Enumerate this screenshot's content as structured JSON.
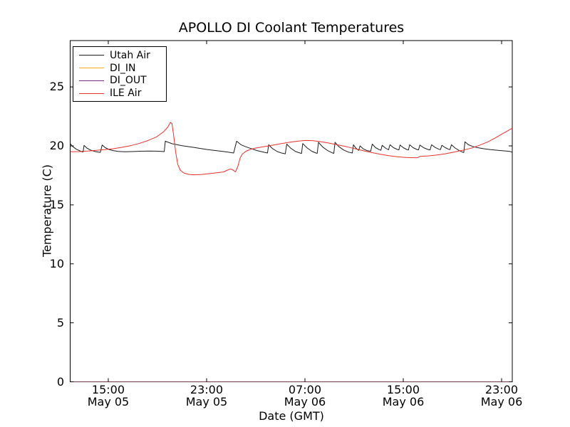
{
  "chart_data": {
    "type": "line",
    "title": "APOLLO DI Coolant Temperatures",
    "xlabel": "Date (GMT)",
    "ylabel": "Temperature (C)",
    "x_unit": "hours since May 05 00:00 GMT",
    "x_domain": [
      11.9,
      47.87
    ],
    "y_domain": [
      0,
      28.93
    ],
    "grid": false,
    "legend_position": "upper left",
    "frame_color": "#000000",
    "background": "#ffffff",
    "x_ticks": [
      {
        "time": "15:00",
        "date": "May 05",
        "hour": 15
      },
      {
        "time": "23:00",
        "date": "May 05",
        "hour": 23
      },
      {
        "time": "07:00",
        "date": "May 06",
        "hour": 31
      },
      {
        "time": "15:00",
        "date": "May 06",
        "hour": 39
      },
      {
        "time": "23:00",
        "date": "May 06",
        "hour": 47
      }
    ],
    "y_ticks": [
      0,
      5,
      10,
      15,
      20,
      25
    ],
    "series": [
      {
        "name": "Utah Air",
        "color": "#1c1c1c",
        "opacity": 1,
        "points": [
          [
            11.9,
            20.2
          ],
          [
            12.1,
            19.95
          ],
          [
            12.4,
            19.72
          ],
          [
            12.75,
            19.55
          ],
          [
            12.95,
            19.48
          ],
          [
            13.03,
            20.05
          ],
          [
            13.25,
            19.82
          ],
          [
            13.55,
            19.65
          ],
          [
            13.95,
            19.52
          ],
          [
            14.35,
            19.45
          ],
          [
            14.5,
            20.08
          ],
          [
            14.75,
            19.85
          ],
          [
            15.05,
            19.7
          ],
          [
            15.4,
            19.6
          ],
          [
            15.8,
            19.53
          ],
          [
            16.3,
            19.5
          ],
          [
            16.9,
            19.52
          ],
          [
            17.6,
            19.55
          ],
          [
            18.4,
            19.56
          ],
          [
            19.1,
            19.55
          ],
          [
            19.55,
            19.52
          ],
          [
            19.64,
            20.4
          ],
          [
            20.2,
            20.18
          ],
          [
            21.0,
            20.02
          ],
          [
            22.0,
            19.86
          ],
          [
            23.0,
            19.7
          ],
          [
            24.0,
            19.57
          ],
          [
            24.7,
            19.48
          ],
          [
            25.2,
            19.4
          ],
          [
            25.44,
            20.4
          ],
          [
            25.8,
            20.1
          ],
          [
            26.2,
            19.92
          ],
          [
            26.6,
            19.78
          ],
          [
            27.1,
            19.6
          ],
          [
            27.6,
            19.48
          ],
          [
            27.95,
            19.4
          ],
          [
            28.05,
            20.1
          ],
          [
            28.35,
            19.78
          ],
          [
            28.75,
            19.52
          ],
          [
            29.15,
            19.38
          ],
          [
            29.4,
            19.33
          ],
          [
            29.52,
            20.15
          ],
          [
            29.85,
            19.8
          ],
          [
            30.25,
            19.52
          ],
          [
            30.6,
            19.4
          ],
          [
            30.72,
            19.36
          ],
          [
            30.82,
            20.2
          ],
          [
            31.15,
            19.85
          ],
          [
            31.55,
            19.55
          ],
          [
            31.9,
            19.4
          ],
          [
            32.0,
            19.37
          ],
          [
            32.1,
            20.3
          ],
          [
            32.45,
            19.9
          ],
          [
            32.85,
            19.6
          ],
          [
            33.2,
            19.42
          ],
          [
            33.35,
            19.37
          ],
          [
            33.45,
            20.3
          ],
          [
            33.75,
            19.95
          ],
          [
            34.15,
            19.65
          ],
          [
            34.55,
            19.47
          ],
          [
            34.85,
            19.4
          ],
          [
            34.95,
            20.1
          ],
          [
            35.15,
            19.8
          ],
          [
            35.38,
            19.62
          ],
          [
            35.48,
            20.0
          ],
          [
            35.75,
            19.75
          ],
          [
            36.05,
            19.6
          ],
          [
            36.35,
            19.55
          ],
          [
            36.48,
            20.15
          ],
          [
            36.75,
            19.85
          ],
          [
            37.05,
            19.68
          ],
          [
            37.18,
            19.63
          ],
          [
            37.28,
            20.05
          ],
          [
            37.55,
            19.82
          ],
          [
            37.8,
            19.67
          ],
          [
            37.92,
            20.1
          ],
          [
            38.2,
            19.85
          ],
          [
            38.52,
            19.7
          ],
          [
            38.64,
            19.66
          ],
          [
            38.74,
            20.07
          ],
          [
            39.0,
            19.85
          ],
          [
            39.28,
            19.7
          ],
          [
            39.42,
            19.65
          ],
          [
            39.52,
            20.1
          ],
          [
            39.8,
            19.85
          ],
          [
            40.1,
            19.7
          ],
          [
            40.24,
            19.66
          ],
          [
            40.35,
            20.07
          ],
          [
            40.65,
            19.85
          ],
          [
            41.0,
            19.7
          ],
          [
            41.18,
            19.66
          ],
          [
            41.3,
            20.1
          ],
          [
            41.6,
            19.87
          ],
          [
            41.9,
            19.72
          ],
          [
            42.02,
            19.68
          ],
          [
            42.14,
            20.05
          ],
          [
            42.42,
            19.85
          ],
          [
            42.68,
            19.72
          ],
          [
            42.8,
            19.68
          ],
          [
            42.92,
            20.1
          ],
          [
            43.22,
            19.82
          ],
          [
            43.55,
            19.6
          ],
          [
            43.8,
            19.48
          ],
          [
            43.92,
            19.44
          ],
          [
            44.02,
            20.35
          ],
          [
            44.3,
            20.1
          ],
          [
            44.65,
            19.95
          ],
          [
            45.05,
            19.85
          ],
          [
            45.55,
            19.76
          ],
          [
            46.1,
            19.68
          ],
          [
            46.7,
            19.62
          ],
          [
            47.3,
            19.57
          ],
          [
            47.7,
            19.53
          ],
          [
            47.87,
            19.45
          ]
        ]
      },
      {
        "name": "DI_IN",
        "color": "#ffa51e",
        "opacity": 0.4,
        "points": [
          [
            11.9,
            0
          ],
          [
            47.87,
            0
          ]
        ]
      },
      {
        "name": "DI_OUT",
        "color": "#7d2b8b",
        "opacity": 0.45,
        "points": [
          [
            11.9,
            0
          ],
          [
            47.87,
            0
          ]
        ]
      },
      {
        "name": "ILE Air",
        "color": "#e8312c",
        "opacity": 1,
        "points": [
          [
            11.9,
            19.5
          ],
          [
            12.6,
            19.52
          ],
          [
            13.3,
            19.56
          ],
          [
            14.0,
            19.62
          ],
          [
            14.7,
            19.68
          ],
          [
            15.4,
            19.76
          ],
          [
            16.1,
            19.88
          ],
          [
            16.8,
            20.02
          ],
          [
            17.5,
            20.2
          ],
          [
            18.2,
            20.45
          ],
          [
            18.9,
            20.75
          ],
          [
            19.5,
            21.2
          ],
          [
            19.85,
            21.6
          ],
          [
            20.05,
            22.0
          ],
          [
            20.18,
            21.9
          ],
          [
            20.32,
            20.9
          ],
          [
            20.48,
            19.5
          ],
          [
            20.65,
            18.45
          ],
          [
            20.85,
            17.95
          ],
          [
            21.15,
            17.7
          ],
          [
            21.55,
            17.58
          ],
          [
            22.05,
            17.55
          ],
          [
            22.6,
            17.58
          ],
          [
            23.2,
            17.65
          ],
          [
            23.8,
            17.72
          ],
          [
            24.4,
            17.8
          ],
          [
            24.7,
            17.95
          ],
          [
            24.95,
            18.05
          ],
          [
            25.15,
            17.95
          ],
          [
            25.35,
            17.8
          ],
          [
            25.55,
            18.3
          ],
          [
            25.72,
            18.95
          ],
          [
            25.9,
            19.3
          ],
          [
            26.2,
            19.55
          ],
          [
            26.55,
            19.7
          ],
          [
            27.0,
            19.82
          ],
          [
            27.6,
            19.92
          ],
          [
            28.3,
            20.05
          ],
          [
            29.0,
            20.18
          ],
          [
            29.7,
            20.3
          ],
          [
            30.4,
            20.4
          ],
          [
            31.0,
            20.46
          ],
          [
            31.6,
            20.45
          ],
          [
            32.2,
            20.37
          ],
          [
            32.9,
            20.25
          ],
          [
            33.6,
            20.1
          ],
          [
            34.3,
            19.95
          ],
          [
            35.0,
            19.78
          ],
          [
            35.7,
            19.6
          ],
          [
            36.4,
            19.44
          ],
          [
            37.1,
            19.3
          ],
          [
            37.8,
            19.17
          ],
          [
            38.5,
            19.08
          ],
          [
            39.2,
            19.02
          ],
          [
            39.8,
            19.0
          ],
          [
            40.15,
            19.0
          ],
          [
            40.4,
            19.12
          ],
          [
            41.0,
            19.15
          ],
          [
            41.7,
            19.22
          ],
          [
            42.4,
            19.33
          ],
          [
            43.1,
            19.47
          ],
          [
            43.8,
            19.62
          ],
          [
            44.5,
            19.8
          ],
          [
            45.2,
            20.05
          ],
          [
            45.9,
            20.35
          ],
          [
            46.5,
            20.68
          ],
          [
            47.1,
            21.05
          ],
          [
            47.5,
            21.28
          ],
          [
            47.87,
            21.5
          ]
        ]
      }
    ]
  }
}
